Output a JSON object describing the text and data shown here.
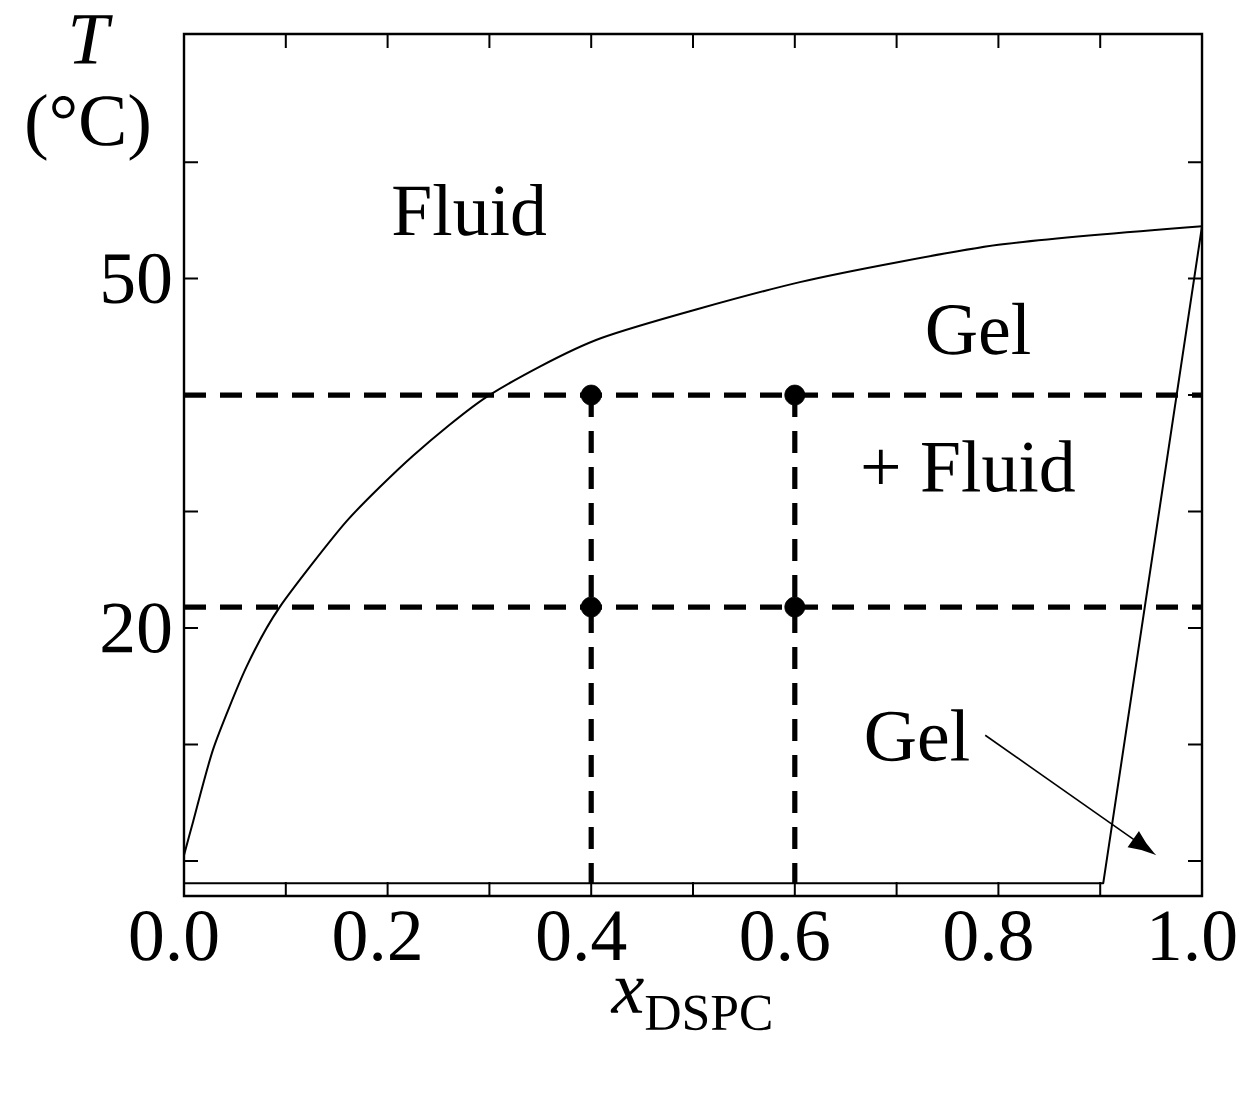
{
  "chart_data": {
    "type": "line",
    "xlabel": "*x*$_{DSPC}$",
    "ylabel": "*T* (°C)",
    "xlim": [
      0,
      1
    ],
    "ylim": [
      -3,
      71
    ],
    "xticks": [
      {
        "value": 0,
        "label": "0.0"
      },
      {
        "value": 0.1,
        "label": null
      },
      0.2,
      {
        "value": 0.3,
        "label": null
      },
      0.4,
      {
        "value": 0.5,
        "label": null
      },
      0.6,
      {
        "value": 0.7,
        "label": null
      },
      0.8,
      {
        "value": 0.9,
        "label": null
      },
      {
        "value": 1,
        "label": "1.0"
      }
    ],
    "yticks": [
      {
        "value": 0,
        "label": null
      },
      {
        "value": 10,
        "label": null
      },
      20,
      {
        "value": 30,
        "label": null
      },
      {
        "value": 40,
        "label": null
      },
      50,
      {
        "value": 60,
        "label": null
      }
    ],
    "series": [
      {
        "color": "#000000",
        "line_style": "solid",
        "x": [
          0,
          0.009,
          0.029,
          0.061,
          0.094,
          0.16,
          0.225,
          0.3,
          0.41,
          0.605,
          0.8,
          1.0
        ],
        "values": [
          0.5,
          3.4,
          9.7,
          16.6,
          21.8,
          29.2,
          34.8,
          40,
          44.9,
          49.7,
          52.9,
          54.5
        ]
      },
      {
        "color": "#000000",
        "line_style": "solid",
        "x": [
          0,
          0.903,
          1.0
        ],
        "values": [
          -1.9,
          -1.9,
          54.5
        ]
      },
      {
        "color": "#000000",
        "line_style": "dashed",
        "x": [
          0.4,
          0.4
        ],
        "values": [
          40,
          -1.9
        ]
      },
      {
        "color": "#000000",
        "line_style": "dashed",
        "x": [
          0.6,
          0.6
        ],
        "values": [
          40,
          -1.9
        ]
      },
      {
        "type": "scatter",
        "color": "#000000",
        "marker": "circle",
        "x": [
          0.4,
          0.6,
          0.4,
          0.6
        ],
        "values": [
          40,
          40,
          21.8,
          21.8
        ]
      }
    ],
    "ref_lines": [
      {
        "axis": "y",
        "value": 40,
        "color": "#000000",
        "line_style": "dashed"
      },
      {
        "axis": "y",
        "value": 21.8,
        "color": "#000000",
        "line_style": "dashed"
      }
    ],
    "annotations": [
      "Fluid",
      "Gel",
      "+ Fluid",
      "Gel"
    ]
  }
}
